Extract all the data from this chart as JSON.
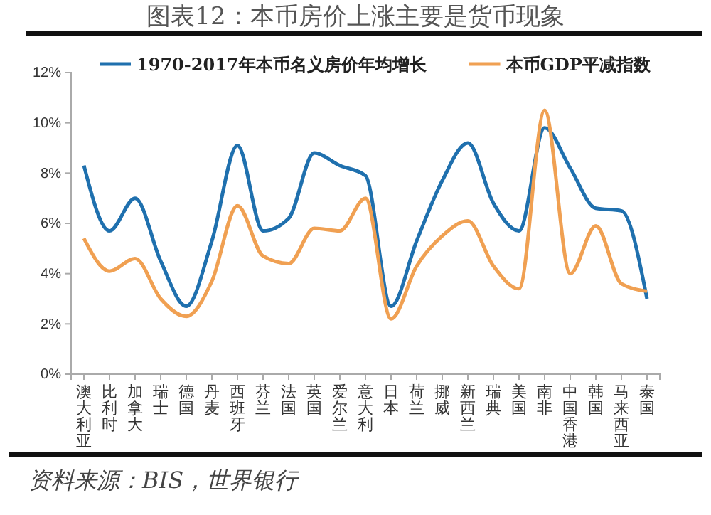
{
  "chart_data": {
    "type": "line",
    "title": "图表12：本币房价上涨主要是货币现象",
    "categories": [
      "澳大利亚",
      "比利时",
      "加拿大",
      "瑞士",
      "德国",
      "丹麦",
      "西班牙",
      "芬兰",
      "法国",
      "英国",
      "爱尔兰",
      "意大利",
      "日本",
      "荷兰",
      "挪威",
      "新西兰",
      "瑞典",
      "美国",
      "南非",
      "中国香港",
      "韩国",
      "马来西亚",
      "泰国"
    ],
    "series": [
      {
        "name": "1970-2017年本币名义房价年均增长",
        "color": "#1f70ae",
        "values": [
          8.3,
          5.7,
          7.0,
          4.5,
          2.7,
          5.3,
          9.1,
          5.7,
          6.2,
          8.8,
          8.3,
          7.9,
          2.7,
          5.3,
          7.7,
          9.2,
          6.8,
          5.7,
          9.8,
          8.2,
          6.6,
          6.5,
          3.0
        ]
      },
      {
        "name": "本币GDP平减指数",
        "color": "#f0a052",
        "values": [
          5.4,
          4.1,
          4.6,
          3.0,
          2.3,
          3.7,
          6.7,
          4.7,
          4.4,
          5.8,
          5.7,
          7.0,
          2.2,
          4.3,
          5.5,
          6.1,
          4.3,
          3.4,
          10.5,
          4.0,
          5.9,
          3.6,
          3.3
        ]
      }
    ],
    "ylim": [
      0,
      12
    ],
    "yticks": [
      {
        "value": 0,
        "label": "0%"
      },
      {
        "value": 2,
        "label": "2%"
      },
      {
        "value": 4,
        "label": "4%"
      },
      {
        "value": 6,
        "label": "6%"
      },
      {
        "value": 8,
        "label": "8%"
      },
      {
        "value": 10,
        "label": "10%"
      },
      {
        "value": 12,
        "label": "12%"
      }
    ],
    "legend": "top",
    "grid": false,
    "marker": "none",
    "line_style": "solid",
    "annotations": [
      "资料来源：BIS，世界银行"
    ]
  }
}
